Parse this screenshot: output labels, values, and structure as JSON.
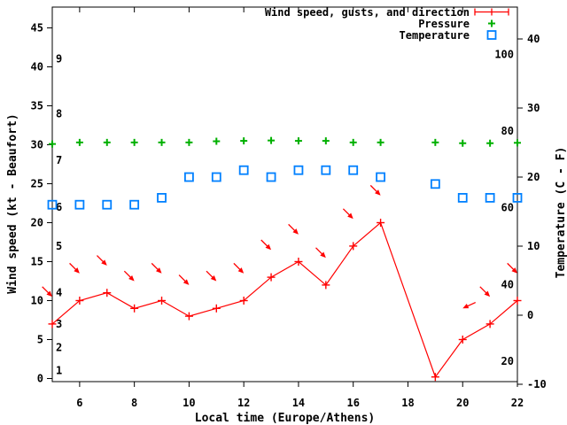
{
  "legend": {
    "items": [
      {
        "label": "Wind speed, gusts, and direction",
        "series": "wind",
        "marker": "errorbar",
        "color": "#ff0000"
      },
      {
        "label": "Pressure",
        "series": "pressure",
        "marker": "plus",
        "color": "#00b000"
      },
      {
        "label": "Temperature",
        "series": "temperature",
        "marker": "square",
        "color": "#0080ff"
      }
    ]
  },
  "chart_data": {
    "type": "line",
    "title": "",
    "xlabel": "Local time (Europe/Athens)",
    "ylabel_left": "Wind speed (kt - Beaufort)",
    "ylabel_right": "Temperature (C - F)",
    "x_range": [
      5,
      22
    ],
    "x_ticks": [
      6,
      8,
      10,
      12,
      14,
      16,
      18,
      20,
      22
    ],
    "x_tick_labels": [
      "6",
      "8",
      "10",
      "12",
      "14",
      "16",
      "18",
      "20",
      "22"
    ],
    "wind_axis": {
      "range": [
        0,
        47.6
      ],
      "ticks": [
        0,
        5,
        10,
        15,
        20,
        25,
        30,
        35,
        40,
        45
      ]
    },
    "beaufort_scale": [
      {
        "label": "1",
        "kt": 1
      },
      {
        "label": "2",
        "kt": 4
      },
      {
        "label": "3",
        "kt": 7
      },
      {
        "label": "4",
        "kt": 11
      },
      {
        "label": "5",
        "kt": 17
      },
      {
        "label": "6",
        "kt": 22
      },
      {
        "label": "7",
        "kt": 28
      },
      {
        "label": "8",
        "kt": 34
      },
      {
        "label": "9",
        "kt": 41
      }
    ],
    "temp_axis_c": {
      "range": [
        -10,
        44
      ],
      "ticks": [
        -10,
        0,
        10,
        20,
        30,
        40
      ]
    },
    "temp_axis_f_labels": [
      "20",
      "40",
      "60",
      "80",
      "100"
    ],
    "hours": [
      5,
      6,
      7,
      8,
      9,
      10,
      11,
      12,
      13,
      14,
      15,
      16,
      17,
      19,
      20,
      21,
      22
    ],
    "series": [
      {
        "name": "wind_speed_kt",
        "values": [
          7,
          10,
          11,
          9,
          10,
          8,
          9,
          10,
          13,
          15,
          12,
          17,
          20,
          0.2,
          5,
          7,
          10
        ]
      },
      {
        "name": "wind_gust_kt",
        "values": [
          10.5,
          13.5,
          14.5,
          12.5,
          13.5,
          12,
          12.5,
          13.5,
          16.5,
          18.5,
          15.5,
          20.5,
          23.5,
          null,
          9,
          10.5,
          13.5
        ]
      },
      {
        "name": "gust_arrow_angle_deg",
        "values": [
          45,
          45,
          45,
          45,
          45,
          45,
          45,
          45,
          45,
          45,
          45,
          45,
          45,
          null,
          155,
          45,
          45
        ]
      },
      {
        "name": "pressure_inHg",
        "values": [
          30.1,
          30.3,
          30.3,
          30.3,
          30.3,
          30.3,
          30.45,
          30.5,
          30.55,
          30.5,
          30.5,
          30.3,
          30.3,
          30.3,
          30.2,
          30.2,
          30.25
        ]
      },
      {
        "name": "temperature_c",
        "values": [
          16,
          16,
          16,
          16,
          17,
          20,
          20,
          21,
          20,
          21,
          21,
          21,
          20,
          19,
          17,
          17,
          17
        ]
      }
    ],
    "colors": {
      "wind": "#ff0000",
      "pressure": "#00b000",
      "temperature": "#0080ff",
      "axis": "#000000",
      "background": "#ffffff"
    }
  }
}
